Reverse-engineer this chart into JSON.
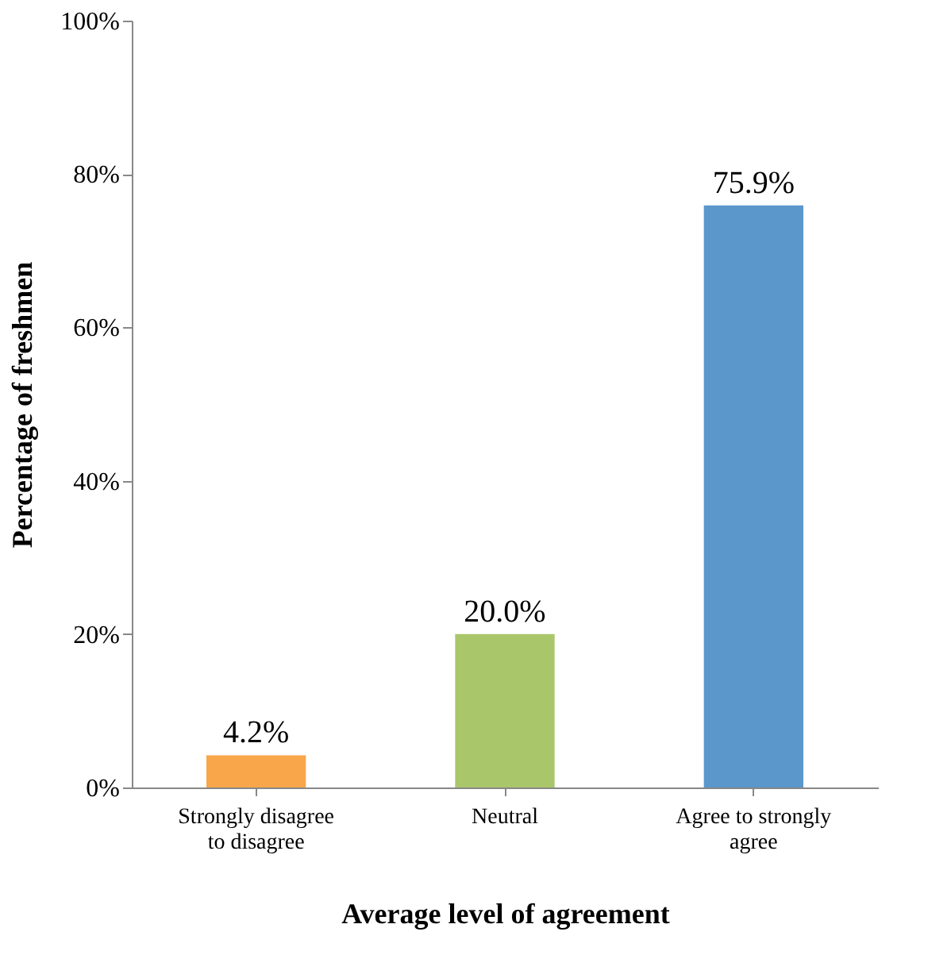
{
  "chart_data": {
    "type": "bar",
    "xlabel": "Average level of agreement",
    "ylabel": "Percentage of freshmen",
    "categories": [
      "Strongly disagree to disagree",
      "Neutral",
      "Agree to strongly agree"
    ],
    "values": [
      4.2,
      20.0,
      75.9
    ],
    "colors": [
      "#f9a64a",
      "#a9c66b",
      "#5b97cb"
    ],
    "value_labels": [
      "4.2%",
      "20.0%",
      "75.9%"
    ],
    "ylim": [
      0,
      100
    ],
    "yticks": [
      {
        "value": 0,
        "label": "0%"
      },
      {
        "value": 20,
        "label": "20%"
      },
      {
        "value": 40,
        "label": "40%"
      },
      {
        "value": 60,
        "label": "60%"
      },
      {
        "value": 80,
        "label": "80%"
      },
      {
        "value": 100,
        "label": "100%"
      }
    ],
    "grid": false
  }
}
